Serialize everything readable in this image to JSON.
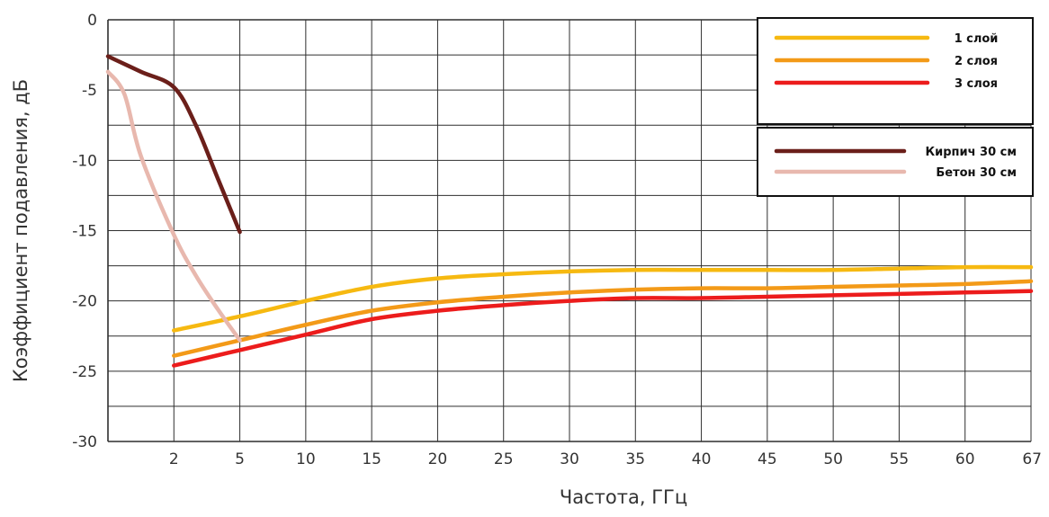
{
  "chart_data": {
    "type": "line",
    "xlabel": "Частота,  ГГц",
    "ylabel": "Коэффициент подавления, дБ",
    "ylim": [
      -30,
      0
    ],
    "grid": true,
    "x_ticks": [
      "2",
      "5",
      "10",
      "15",
      "20",
      "25",
      "30",
      "35",
      "40",
      "45",
      "50",
      "55",
      "60",
      "67"
    ],
    "y_ticks": [
      "0",
      "-5",
      "-10",
      "-15",
      "-20",
      "-25",
      "-30"
    ],
    "legend_groups": [
      {
        "placement": "top-right",
        "series": [
          0,
          1,
          2
        ]
      },
      {
        "placement": "right",
        "series": [
          3,
          4
        ]
      }
    ],
    "series": [
      {
        "name": "1 слой",
        "color": "#F6B911",
        "points": [
          {
            "x": "2",
            "y": -22.1
          },
          {
            "x": "5",
            "y": -21.1
          },
          {
            "x": "10",
            "y": -20.0
          },
          {
            "x": "15",
            "y": -19.0
          },
          {
            "x": "20",
            "y": -18.4
          },
          {
            "x": "25",
            "y": -18.1
          },
          {
            "x": "30",
            "y": -17.9
          },
          {
            "x": "35",
            "y": -17.8
          },
          {
            "x": "40",
            "y": -17.8
          },
          {
            "x": "45",
            "y": -17.8
          },
          {
            "x": "50",
            "y": -17.8
          },
          {
            "x": "55",
            "y": -17.7
          },
          {
            "x": "60",
            "y": -17.6
          },
          {
            "x": "67",
            "y": -17.6
          }
        ]
      },
      {
        "name": "2 слоя",
        "color": "#F39A18",
        "points": [
          {
            "x": "2",
            "y": -23.9
          },
          {
            "x": "5",
            "y": -22.8
          },
          {
            "x": "10",
            "y": -21.7
          },
          {
            "x": "15",
            "y": -20.7
          },
          {
            "x": "20",
            "y": -20.1
          },
          {
            "x": "25",
            "y": -19.7
          },
          {
            "x": "30",
            "y": -19.4
          },
          {
            "x": "35",
            "y": -19.2
          },
          {
            "x": "40",
            "y": -19.1
          },
          {
            "x": "45",
            "y": -19.1
          },
          {
            "x": "50",
            "y": -19.0
          },
          {
            "x": "55",
            "y": -18.9
          },
          {
            "x": "60",
            "y": -18.8
          },
          {
            "x": "67",
            "y": -18.6
          }
        ]
      },
      {
        "name": "3 слоя",
        "color": "#EC1C1C",
        "points": [
          {
            "x": "2",
            "y": -24.6
          },
          {
            "x": "5",
            "y": -23.5
          },
          {
            "x": "10",
            "y": -22.4
          },
          {
            "x": "15",
            "y": -21.3
          },
          {
            "x": "20",
            "y": -20.7
          },
          {
            "x": "25",
            "y": -20.3
          },
          {
            "x": "30",
            "y": -20.0
          },
          {
            "x": "35",
            "y": -19.8
          },
          {
            "x": "40",
            "y": -19.8
          },
          {
            "x": "45",
            "y": -19.7
          },
          {
            "x": "50",
            "y": -19.6
          },
          {
            "x": "55",
            "y": -19.5
          },
          {
            "x": "60",
            "y": -19.4
          },
          {
            "x": "67",
            "y": -19.3
          }
        ]
      },
      {
        "name": "Кирпич 30 см",
        "color": "#6B1F1A",
        "points": [
          {
            "x": "0",
            "y": -2.6
          },
          {
            "x": "1",
            "y": -3.7
          },
          {
            "x": "2",
            "y": -4.8
          },
          {
            "x": "3",
            "y": -7.5
          },
          {
            "x": "4",
            "y": -11.3
          },
          {
            "x": "5",
            "y": -15.1
          }
        ]
      },
      {
        "name": "Бетон 30 см",
        "color": "#E8B8AE",
        "points": [
          {
            "x": "0",
            "y": -3.7
          },
          {
            "x": "0.5",
            "y": -5.3
          },
          {
            "x": "1",
            "y": -9.7
          },
          {
            "x": "2",
            "y": -15.3
          },
          {
            "x": "3",
            "y": -18.2
          },
          {
            "x": "4",
            "y": -20.6
          },
          {
            "x": "5",
            "y": -22.8
          }
        ]
      }
    ]
  }
}
